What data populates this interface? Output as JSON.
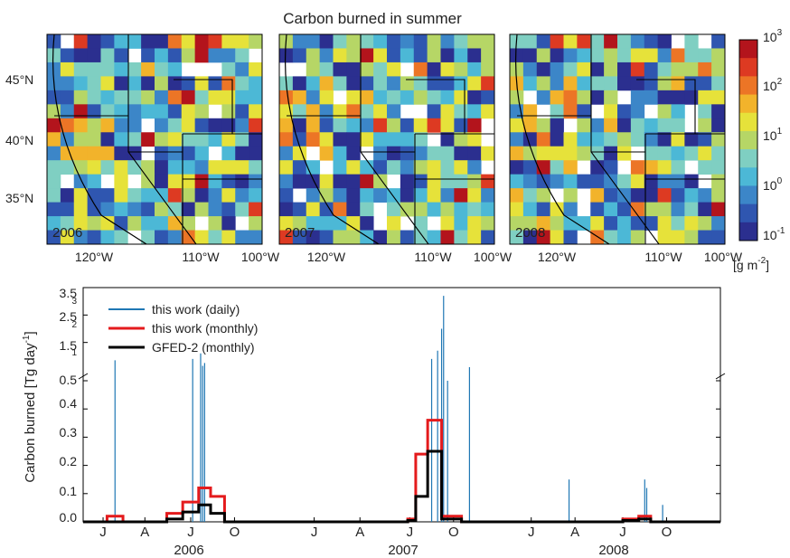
{
  "figure": {
    "title": "Carbon burned in summer"
  },
  "chart_data": [
    {
      "type": "heatmap",
      "title": "Carbon burned in summer",
      "panels": [
        {
          "label": "2006",
          "seed": 11
        },
        {
          "label": "2007",
          "seed": 27
        },
        {
          "label": "2008",
          "seed": 53
        }
      ],
      "x_ticks": [
        "120°W",
        "110°W",
        "100°W"
      ],
      "y_ticks": [
        "45°N",
        "40°N",
        "35°N"
      ],
      "colorbar": {
        "scale": "log",
        "range": [
          0.1,
          1000
        ],
        "tick_bases": [
          "10",
          "10",
          "10",
          "10",
          "10"
        ],
        "tick_exponents": [
          "3",
          "2",
          "1",
          "0",
          "-1"
        ],
        "unit_base": "[g m",
        "unit_exp": "-2",
        "unit_close": "]",
        "colors": [
          "#2b2f8f",
          "#2f56b0",
          "#3c86c8",
          "#4cb8d6",
          "#7fcfc2",
          "#b6d666",
          "#e6e23a",
          "#f2b32b",
          "#ec7526",
          "#dd3a22",
          "#b3141c"
        ]
      }
    },
    {
      "type": "line",
      "ylabel_main": "Carbon burned [Tg day",
      "ylabel_exp": "-1",
      "ylabel_close": "]",
      "y_ticks_lower": [
        "0.0",
        "0.1",
        "0.2",
        "0.3",
        "0.4",
        "0.5"
      ],
      "y_ticks_upper": [
        "1.5",
        "2.5",
        "3.5"
      ],
      "y_ticks_upper_small": [
        "1",
        "2",
        "3"
      ],
      "ylim_lower": [
        0,
        0.5
      ],
      "ylim_upper": [
        0.5,
        3.5
      ],
      "x_month_labels": [
        "J",
        "A",
        "J",
        "O",
        "J",
        "A",
        "J",
        "O",
        "J",
        "A",
        "J",
        "O"
      ],
      "x_year_labels": [
        "2006",
        "2007",
        "2008"
      ],
      "legend_position": "top-left",
      "series": [
        {
          "name": "this work (daily)",
          "color": "#1f77b4",
          "spikes": [
            {
              "x": 0.6,
              "y": 0.85
            },
            {
              "x": 4.5,
              "y": 0.9
            },
            {
              "x": 4.9,
              "y": 1.1
            },
            {
              "x": 5.0,
              "y": 0.65
            },
            {
              "x": 5.1,
              "y": 0.75
            },
            {
              "x": 16.5,
              "y": 0.9
            },
            {
              "x": 16.8,
              "y": 1.2
            },
            {
              "x": 17.0,
              "y": 2.0
            },
            {
              "x": 17.1,
              "y": 3.2
            },
            {
              "x": 17.3,
              "y": 0.5
            },
            {
              "x": 18.4,
              "y": 0.6
            },
            {
              "x": 23.4,
              "y": 0.15
            },
            {
              "x": 27.2,
              "y": 0.15
            },
            {
              "x": 27.3,
              "y": 0.12
            },
            {
              "x": 28.1,
              "y": 0.06
            }
          ]
        },
        {
          "name": "this work (monthly)",
          "color": "#e41a1c",
          "steps": [
            {
              "x": -1.0,
              "y": 0.0
            },
            {
              "x": 0.2,
              "y": 0.02
            },
            {
              "x": 1.0,
              "y": 0.0
            },
            {
              "x": 3.2,
              "y": 0.03
            },
            {
              "x": 4.0,
              "y": 0.07
            },
            {
              "x": 4.8,
              "y": 0.12
            },
            {
              "x": 5.4,
              "y": 0.09
            },
            {
              "x": 6.1,
              "y": 0.0
            },
            {
              "x": 15.3,
              "y": 0.01
            },
            {
              "x": 15.7,
              "y": 0.24
            },
            {
              "x": 16.3,
              "y": 0.36
            },
            {
              "x": 17.0,
              "y": 0.02
            },
            {
              "x": 18.0,
              "y": 0.0
            },
            {
              "x": 26.1,
              "y": 0.01
            },
            {
              "x": 26.9,
              "y": 0.02
            },
            {
              "x": 27.5,
              "y": 0.0
            }
          ]
        },
        {
          "name": "GFED-2 (monthly)",
          "color": "#000000",
          "steps": [
            {
              "x": -1.0,
              "y": 0.0
            },
            {
              "x": 3.2,
              "y": 0.01
            },
            {
              "x": 4.0,
              "y": 0.035
            },
            {
              "x": 4.8,
              "y": 0.06
            },
            {
              "x": 5.4,
              "y": 0.03
            },
            {
              "x": 6.1,
              "y": 0.0
            },
            {
              "x": 15.3,
              "y": 0.005
            },
            {
              "x": 15.7,
              "y": 0.09
            },
            {
              "x": 16.3,
              "y": 0.25
            },
            {
              "x": 17.0,
              "y": 0.01
            },
            {
              "x": 18.0,
              "y": 0.0
            },
            {
              "x": 26.1,
              "y": 0.005
            },
            {
              "x": 26.9,
              "y": 0.01
            },
            {
              "x": 27.5,
              "y": 0.0
            }
          ]
        }
      ]
    }
  ]
}
